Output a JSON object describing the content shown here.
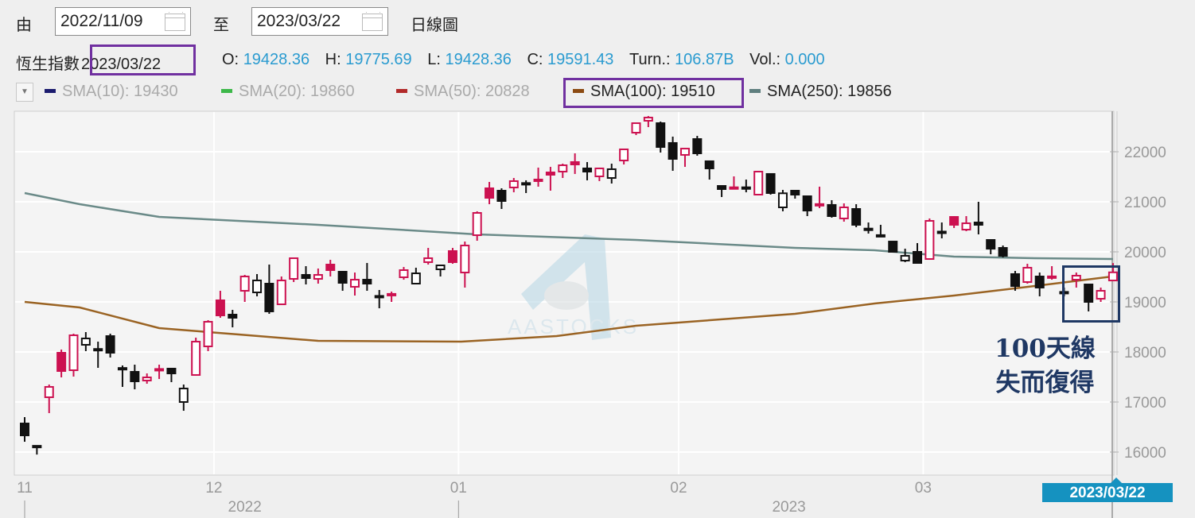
{
  "header": {
    "from_label": "由",
    "from_date": "2022/11/09",
    "to_label": "至",
    "to_date": "2023/03/22",
    "chart_type": "日線圖"
  },
  "quote": {
    "index_name": "恆生指數",
    "date": "2023/03/22",
    "open_label": "O:",
    "open": "19428.36",
    "high_label": "H:",
    "high": "19775.69",
    "low_label": "L:",
    "low": "19428.36",
    "close_label": "C:",
    "close": "19591.43",
    "turnover_label": "Turn.:",
    "turnover": "106.87B",
    "volume_label": "Vol.:",
    "volume": "0.000"
  },
  "legend": [
    {
      "label": "SMA(10): 19430",
      "color": "#1b1b6e",
      "active": false
    },
    {
      "label": "SMA(20): 19860",
      "color": "#3db84a",
      "active": false
    },
    {
      "label": "SMA(50): 20828",
      "color": "#b22a2a",
      "active": false
    },
    {
      "label": "SMA(100): 19510",
      "color": "#8b4a12",
      "active": true
    },
    {
      "label": "SMA(250): 19856",
      "color": "#5f7f7f",
      "active": true
    }
  ],
  "annotation": {
    "line1": "100天線",
    "line2": "失而復得"
  },
  "current_date_tag": "2023/03/22",
  "watermark": "AASTOCKS",
  "colors": {
    "up": "#cc1150",
    "down": "#111111",
    "sma100": "#9a6323",
    "sma250": "#6a8a88",
    "annotation": "#1f3864",
    "highlight": "#7030a0"
  },
  "chart_data": {
    "type": "candlestick",
    "title": "恆生指數",
    "ylim": [
      15800,
      22800
    ],
    "yticks": [
      16000,
      17000,
      18000,
      19000,
      20000,
      21000,
      22000
    ],
    "ytick_labels": [
      "16000",
      "17000",
      "18000",
      "19000",
      "20000",
      "21000",
      "22000"
    ],
    "grid": true,
    "xticks": [
      {
        "index": 0,
        "label": "11"
      },
      {
        "index": 16,
        "label": "12"
      },
      {
        "index": 36,
        "label": "01"
      },
      {
        "index": 54,
        "label": "02"
      },
      {
        "index": 74,
        "label": "03"
      }
    ],
    "year_labels": [
      {
        "index": 18,
        "label": "2022"
      },
      {
        "index": 62.5,
        "label": "2023"
      }
    ],
    "candle_format": [
      "open",
      "high",
      "low",
      "close",
      "color r=up b=down"
    ],
    "candles": [
      [
        16571,
        16698,
        16206,
        16333,
        "b"
      ],
      [
        16125,
        16130,
        15950,
        16100,
        "b"
      ],
      [
        17095,
        17349,
        16778,
        17302,
        "r"
      ],
      [
        17984,
        18048,
        17492,
        17619,
        "r"
      ],
      [
        17635,
        18365,
        17508,
        18333,
        "r"
      ],
      [
        18143,
        18397,
        18016,
        18270,
        "b"
      ],
      [
        18060,
        18206,
        17683,
        18040,
        "b"
      ],
      [
        18317,
        18365,
        17889,
        17984,
        "b"
      ],
      [
        17680,
        17730,
        17302,
        17660,
        "b"
      ],
      [
        17603,
        17746,
        17254,
        17413,
        "b"
      ],
      [
        17429,
        17571,
        17365,
        17492,
        "r"
      ],
      [
        17640,
        17746,
        17460,
        17660,
        "r"
      ],
      [
        17667,
        17667,
        17397,
        17571,
        "b"
      ],
      [
        17000,
        17349,
        16825,
        17270,
        "b"
      ],
      [
        17540,
        18286,
        17524,
        18206,
        "r"
      ],
      [
        18111,
        18635,
        18016,
        18603,
        "r"
      ],
      [
        19032,
        19222,
        18683,
        18730,
        "r"
      ],
      [
        18746,
        18841,
        18492,
        18683,
        "b"
      ],
      [
        19222,
        19540,
        19000,
        19508,
        "r"
      ],
      [
        19190,
        19556,
        19111,
        19429,
        "b"
      ],
      [
        19365,
        19746,
        18762,
        18810,
        "b"
      ],
      [
        18952,
        19508,
        18952,
        19429,
        "r"
      ],
      [
        19460,
        19889,
        19397,
        19873,
        "r"
      ],
      [
        19540,
        19714,
        19349,
        19476,
        "b"
      ],
      [
        19460,
        19667,
        19365,
        19540,
        "r"
      ],
      [
        19746,
        19841,
        19508,
        19635,
        "r"
      ],
      [
        19603,
        19619,
        19222,
        19381,
        "b"
      ],
      [
        19302,
        19587,
        19127,
        19444,
        "r"
      ],
      [
        19444,
        19778,
        19222,
        19365,
        "b"
      ],
      [
        19120,
        19238,
        18873,
        19110,
        "b"
      ],
      [
        19150,
        19206,
        19000,
        19160,
        "r"
      ],
      [
        19492,
        19698,
        19444,
        19635,
        "r"
      ],
      [
        19365,
        19683,
        19365,
        19571,
        "b"
      ],
      [
        19794,
        20079,
        19746,
        19873,
        "r"
      ],
      [
        19651,
        19746,
        19508,
        19730,
        "b"
      ],
      [
        20016,
        20079,
        19762,
        19794,
        "r"
      ],
      [
        19587,
        20206,
        19286,
        20127,
        "r"
      ],
      [
        20333,
        20810,
        20222,
        20778,
        "r"
      ],
      [
        21270,
        21397,
        20952,
        21079,
        "r"
      ],
      [
        21222,
        21270,
        20857,
        21016,
        "b"
      ],
      [
        21286,
        21476,
        21190,
        21413,
        "r"
      ],
      [
        21375,
        21429,
        21175,
        21360,
        "b"
      ],
      [
        21435,
        21683,
        21302,
        21445,
        "r"
      ],
      [
        21587,
        21698,
        21222,
        21540,
        "r"
      ],
      [
        21603,
        21762,
        21476,
        21730,
        "r"
      ],
      [
        21794,
        21968,
        21556,
        21746,
        "r"
      ],
      [
        21667,
        21794,
        21429,
        21603,
        "b"
      ],
      [
        21508,
        21683,
        21413,
        21667,
        "r"
      ],
      [
        21476,
        21762,
        21365,
        21651,
        "b"
      ],
      [
        21825,
        22048,
        21746,
        22048,
        "r"
      ],
      [
        22381,
        22571,
        22333,
        22571,
        "r"
      ],
      [
        22619,
        22714,
        22492,
        22683,
        "r"
      ],
      [
        22571,
        22603,
        21984,
        22095,
        "b"
      ],
      [
        22175,
        22302,
        21619,
        21857,
        "b"
      ],
      [
        21937,
        22063,
        21698,
        22063,
        "r"
      ],
      [
        22254,
        22317,
        21921,
        21968,
        "b"
      ],
      [
        21810,
        21810,
        21444,
        21667,
        "b"
      ],
      [
        21317,
        21317,
        21095,
        21254,
        "b"
      ],
      [
        21280,
        21508,
        21270,
        21290,
        "r"
      ],
      [
        21290,
        21444,
        21190,
        21280,
        "b"
      ],
      [
        21143,
        21619,
        21127,
        21603,
        "r"
      ],
      [
        21556,
        21556,
        21143,
        21175,
        "b"
      ],
      [
        20889,
        21238,
        20810,
        21170,
        "b"
      ],
      [
        21222,
        21222,
        21063,
        21143,
        "b"
      ],
      [
        21111,
        21111,
        20714,
        20825,
        "b"
      ],
      [
        20945,
        21302,
        20873,
        20955,
        "r"
      ],
      [
        20937,
        21032,
        20683,
        20714,
        "b"
      ],
      [
        20667,
        20968,
        20603,
        20889,
        "r"
      ],
      [
        20857,
        20952,
        20492,
        20540,
        "b"
      ],
      [
        20465,
        20587,
        20365,
        20455,
        "b"
      ],
      [
        20335,
        20540,
        20317,
        20325,
        "b"
      ],
      [
        20206,
        20206,
        19984,
        20000,
        "b"
      ],
      [
        19825,
        20063,
        19794,
        19921,
        "b"
      ],
      [
        20000,
        20175,
        19778,
        19778,
        "b"
      ],
      [
        19857,
        20667,
        19841,
        20619,
        "r"
      ],
      [
        20405,
        20587,
        20270,
        20390,
        "b"
      ],
      [
        20698,
        20714,
        20476,
        20540,
        "r"
      ],
      [
        20444,
        20714,
        20413,
        20571,
        "r"
      ],
      [
        20587,
        21000,
        20349,
        20540,
        "b"
      ],
      [
        20238,
        20254,
        19952,
        20063,
        "b"
      ],
      [
        20079,
        20127,
        19889,
        19921,
        "b"
      ],
      [
        19556,
        19619,
        19222,
        19317,
        "b"
      ],
      [
        19397,
        19762,
        19365,
        19683,
        "r"
      ],
      [
        19508,
        19587,
        19111,
        19286,
        "b"
      ],
      [
        19500,
        19714,
        19444,
        19510,
        "r"
      ],
      [
        19200,
        19286,
        19111,
        19190,
        "b"
      ],
      [
        19444,
        19587,
        19286,
        19524,
        "r"
      ],
      [
        19349,
        19349,
        18810,
        19000,
        "b"
      ],
      [
        19063,
        19286,
        19000,
        19222,
        "r"
      ],
      [
        19428,
        19776,
        19428,
        19591,
        "r"
      ]
    ],
    "sma_lines": [
      {
        "name": "SMA(250)",
        "points": [
          [
            0,
            21175
          ],
          [
            4.5,
            20952
          ],
          [
            11,
            20698
          ],
          [
            24,
            20540
          ],
          [
            37,
            20349
          ],
          [
            50,
            20238
          ],
          [
            63,
            20079
          ],
          [
            69.5,
            20032
          ],
          [
            76,
            19905
          ],
          [
            82.6,
            19873
          ],
          [
            89,
            19856
          ]
        ]
      },
      {
        "name": "SMA(100)",
        "points": [
          [
            0,
            19000
          ],
          [
            4.5,
            18889
          ],
          [
            11,
            18476
          ],
          [
            17.5,
            18349
          ],
          [
            24,
            18222
          ],
          [
            35.7,
            18206
          ],
          [
            43.5,
            18317
          ],
          [
            50,
            18524
          ],
          [
            63,
            18762
          ],
          [
            69.5,
            18968
          ],
          [
            76,
            19127
          ],
          [
            82.6,
            19317
          ],
          [
            89,
            19510
          ]
        ]
      }
    ]
  }
}
